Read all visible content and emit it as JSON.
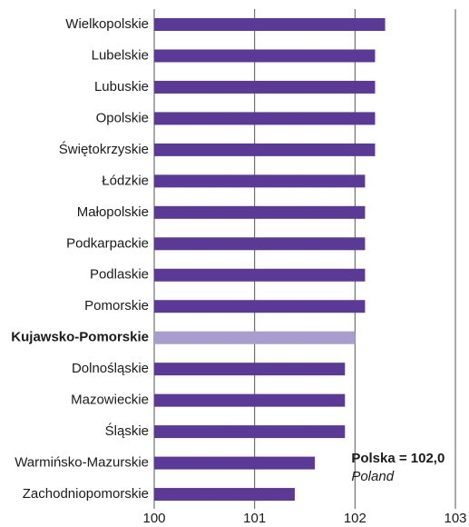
{
  "chart_data": {
    "type": "barh",
    "categories": [
      "Wielkopolskie",
      "Lubelskie",
      "Lubuskie",
      "Opolskie",
      "Świętokrzyskie",
      "Łódzkie",
      "Małopolskie",
      "Podkarpackie",
      "Podlaskie",
      "Pomorskie",
      "Kujawsko-Pomorskie",
      "Dolnośląskie",
      "Mazowieckie",
      "Śląskie",
      "Warmińsko-Mazurskie",
      "Zachodniopomorskie"
    ],
    "values": [
      102.3,
      102.2,
      102.2,
      102.2,
      102.2,
      102.1,
      102.1,
      102.1,
      102.1,
      102.1,
      102.0,
      101.9,
      101.9,
      101.9,
      101.6,
      101.4
    ],
    "color": "#5b3a97",
    "highlight": "Kujawsko-Pomorskie",
    "highlight_color": "#a99cce",
    "xlim": [
      100,
      103
    ],
    "xticks": [
      100,
      101,
      102,
      103
    ],
    "grid": true,
    "reference": {
      "value": 102,
      "label": "Polska = 102,0",
      "sublabel": "Poland"
    }
  }
}
